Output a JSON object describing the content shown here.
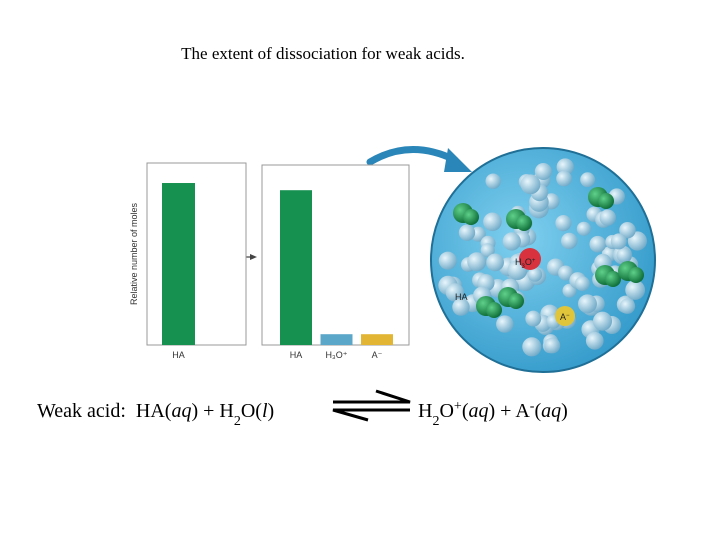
{
  "title": "The extent of dissociation for weak acids.",
  "chart_data": [
    {
      "type": "bar",
      "ylabel": "Relative number of moles",
      "categories": [
        "HA"
      ],
      "values": [
        89
      ],
      "colors": [
        "#16914f"
      ],
      "ylim": [
        0,
        100
      ]
    },
    {
      "type": "bar",
      "categories": [
        "HA",
        "H₃O⁺",
        "A⁻"
      ],
      "values": [
        86,
        6,
        6
      ],
      "colors": [
        "#16914f",
        "#5ba7c9",
        "#e3b534"
      ],
      "ylim": [
        0,
        100
      ]
    }
  ],
  "diagram": {
    "labels": {
      "hydronium": [
        "H",
        "3",
        "O",
        "+"
      ],
      "acid": "HA",
      "anion": [
        "A",
        "−"
      ]
    }
  },
  "equation": {
    "left": [
      "Weak acid:  HA(",
      "aq",
      ") + H",
      "2",
      "O(",
      "l",
      ")"
    ],
    "right": [
      "H",
      "2",
      "O",
      "+",
      "(",
      "aq",
      ") + A",
      "-",
      "(",
      "aq",
      ")"
    ]
  }
}
